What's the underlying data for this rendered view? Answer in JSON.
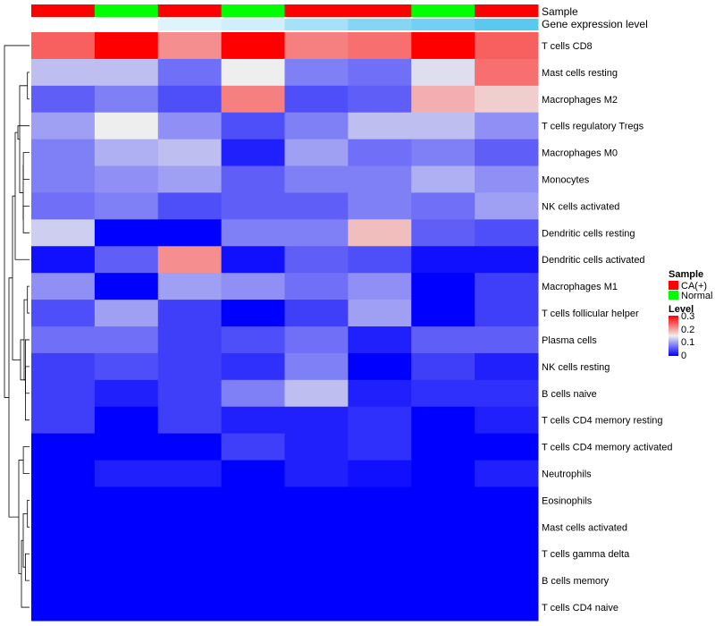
{
  "chart_data": {
    "type": "heatmap",
    "title": "",
    "annotation_rows": [
      "Sample",
      "Gene expression level"
    ],
    "rows": [
      "T cells CD8",
      "Mast cells resting",
      "Macrophages M2",
      "T cells regulatory  Tregs",
      "Macrophages M0",
      "Monocytes",
      "NK cells activated",
      "Dendritic cells resting",
      "Dendritic cells activated",
      "Macrophages M1",
      "T cells follicular helper",
      "Plasma cells",
      "NK cells resting",
      "B cells naive",
      "T cells CD4 memory resting",
      "T cells CD4 memory activated",
      "Neutrophils",
      "Eosinophils",
      "Mast cells activated",
      "T cells gamma delta",
      "B cells memory",
      "T cells CD4 naive"
    ],
    "columns": {
      "sample": [
        "CA(+)",
        "Normal",
        "CA(+)",
        "Normal",
        "CA(+)",
        "CA(+)",
        "Normal",
        "CA(+)"
      ],
      "gene_expression_level": [
        0.0,
        0.0,
        0.2,
        0.3,
        0.55,
        0.75,
        0.85,
        1.0
      ]
    },
    "values": [
      [
        0.24,
        0.3,
        0.21,
        0.3,
        0.22,
        0.23,
        0.3,
        0.24
      ],
      [
        0.12,
        0.12,
        0.07,
        0.15,
        0.08,
        0.07,
        0.14,
        0.23
      ],
      [
        0.06,
        0.08,
        0.05,
        0.22,
        0.05,
        0.06,
        0.19,
        0.17
      ],
      [
        0.1,
        0.15,
        0.09,
        0.05,
        0.08,
        0.12,
        0.12,
        0.09
      ],
      [
        0.08,
        0.11,
        0.12,
        0.02,
        0.1,
        0.07,
        0.08,
        0.06
      ],
      [
        0.08,
        0.09,
        0.1,
        0.06,
        0.08,
        0.08,
        0.11,
        0.09
      ],
      [
        0.07,
        0.08,
        0.05,
        0.06,
        0.06,
        0.08,
        0.07,
        0.1
      ],
      [
        0.13,
        0.0,
        0.0,
        0.08,
        0.08,
        0.18,
        0.06,
        0.05
      ],
      [
        0.01,
        0.06,
        0.21,
        0.01,
        0.06,
        0.05,
        0.01,
        0.01
      ],
      [
        0.09,
        0.0,
        0.1,
        0.09,
        0.07,
        0.09,
        0.0,
        0.04
      ],
      [
        0.05,
        0.1,
        0.04,
        0.0,
        0.04,
        0.1,
        0.0,
        0.04
      ],
      [
        0.07,
        0.07,
        0.04,
        0.05,
        0.07,
        0.02,
        0.06,
        0.06
      ],
      [
        0.04,
        0.05,
        0.04,
        0.03,
        0.08,
        0.0,
        0.04,
        0.02
      ],
      [
        0.04,
        0.02,
        0.04,
        0.08,
        0.12,
        0.02,
        0.03,
        0.03
      ],
      [
        0.04,
        0.0,
        0.04,
        0.02,
        0.02,
        0.03,
        0.0,
        0.02
      ],
      [
        0.0,
        0.0,
        0.0,
        0.04,
        0.02,
        0.03,
        0.0,
        0.0
      ],
      [
        0.0,
        0.02,
        0.02,
        0.0,
        0.02,
        0.01,
        0.0,
        0.02
      ],
      [
        0.0,
        0.0,
        0.0,
        0.0,
        0.0,
        0.0,
        0.0,
        0.0
      ],
      [
        0.0,
        0.0,
        0.0,
        0.0,
        0.0,
        0.0,
        0.0,
        0.0
      ],
      [
        0.0,
        0.0,
        0.0,
        0.0,
        0.0,
        0.0,
        0.0,
        0.0
      ],
      [
        0.0,
        0.0,
        0.0,
        0.0,
        0.0,
        0.0,
        0.0,
        0.0
      ],
      [
        0.0,
        0.0,
        0.0,
        0.0,
        0.0,
        0.0,
        0.0,
        0.0
      ]
    ],
    "color_scale": {
      "stops": [
        {
          "value": 0.0,
          "color": "#0000ff"
        },
        {
          "value": 0.15,
          "color": "#eeeeee"
        },
        {
          "value": 0.3,
          "color": "#ff0000"
        }
      ]
    },
    "gene_expression_colors": {
      "low": "#ffffff",
      "high": "#5bc8f0"
    },
    "row_dendrogram": true,
    "legend": {
      "position": "right",
      "sample_title": "Sample",
      "sample_entries": [
        {
          "label": "CA(+)",
          "color": "#ff0000"
        },
        {
          "label": "Normal",
          "color": "#00ff00"
        }
      ],
      "level_title": "Level",
      "level_ticks": [
        "0.3",
        "0.2",
        "0.1",
        "0"
      ]
    }
  }
}
